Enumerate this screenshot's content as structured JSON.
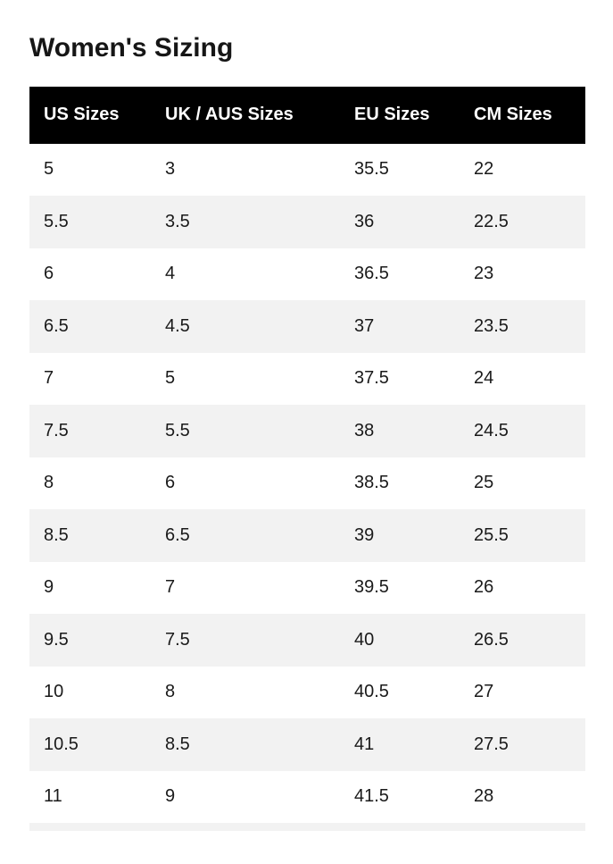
{
  "page": {
    "title": "Women's Sizing"
  },
  "table": {
    "columns": [
      "US Sizes",
      "UK / AUS Sizes",
      "EU Sizes",
      "CM Sizes"
    ],
    "rows": [
      [
        "5",
        "3",
        "35.5",
        "22"
      ],
      [
        "5.5",
        "3.5",
        "36",
        "22.5"
      ],
      [
        "6",
        "4",
        "36.5",
        "23"
      ],
      [
        "6.5",
        "4.5",
        "37",
        "23.5"
      ],
      [
        "7",
        "5",
        "37.5",
        "24"
      ],
      [
        "7.5",
        "5.5",
        "38",
        "24.5"
      ],
      [
        "8",
        "6",
        "38.5",
        "25"
      ],
      [
        "8.5",
        "6.5",
        "39",
        "25.5"
      ],
      [
        "9",
        "7",
        "39.5",
        "26"
      ],
      [
        "9.5",
        "7.5",
        "40",
        "26.5"
      ],
      [
        "10",
        "8",
        "40.5",
        "27"
      ],
      [
        "10.5",
        "8.5",
        "41",
        "27.5"
      ],
      [
        "11",
        "9",
        "41.5",
        "28"
      ]
    ],
    "colors": {
      "header_bg": "#000000",
      "header_text": "#ffffff",
      "row_bg": "#ffffff",
      "row_alt_bg": "#f2f2f2",
      "cell_text": "#1a1a1a"
    }
  }
}
